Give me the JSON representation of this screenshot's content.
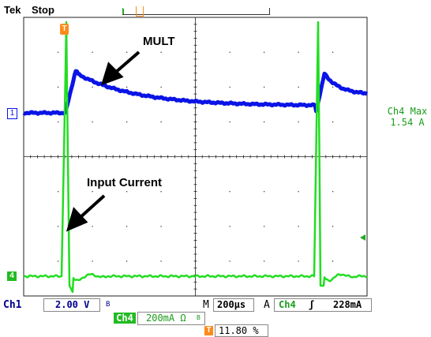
{
  "header": {
    "brand": "Tek",
    "status": "Stop"
  },
  "annotations": {
    "mult": "MULT",
    "input_current": "Input Current"
  },
  "readout": {
    "ch4_max_label": "Ch4 Max",
    "ch4_max_value": "1.54 A"
  },
  "markers": {
    "ch1_marker": "1",
    "ch4_marker": "4",
    "trigger_marker": "T"
  },
  "status_bar": {
    "ch1_label": "Ch1",
    "ch1_scale": "2.00 V",
    "ch1_bw_symbol": "B",
    "timebase_prefix": "M",
    "timebase_value": "200µs",
    "trigger_prefix": "A",
    "trigger_channel": "Ch4",
    "trigger_slope": "ʃ",
    "trigger_level": "228mA",
    "ch4_label": "Ch4",
    "ch4_scale": "200mA Ω",
    "ch4_bw_symbol": "B",
    "trigger_position_marker": "T",
    "trigger_position": "11.80 %"
  },
  "colors": {
    "ch1": "#0a14e6",
    "ch4": "#22dd22",
    "ch4_text": "#1a9c1a",
    "grid": "#222222",
    "trigger": "#ff8a1a"
  }
}
